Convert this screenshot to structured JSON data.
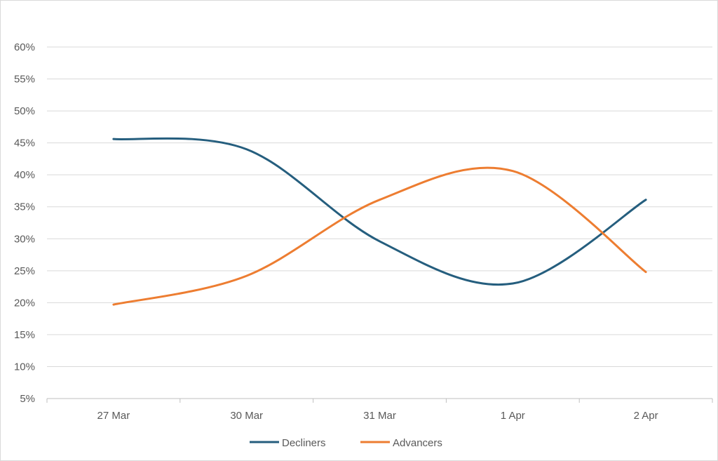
{
  "chart_data": {
    "type": "line",
    "title": "",
    "xlabel": "",
    "ylabel": "",
    "categories": [
      "27 Mar",
      "30 Mar",
      "31 Mar",
      "1 Apr",
      "2 Apr"
    ],
    "ylim": [
      5,
      60
    ],
    "yticks": [
      5,
      10,
      15,
      20,
      25,
      30,
      35,
      40,
      45,
      50,
      55,
      60
    ],
    "ytick_labels": [
      "5%",
      "10%",
      "15%",
      "20%",
      "25%",
      "30%",
      "35%",
      "40%",
      "45%",
      "50%",
      "55%",
      "60%"
    ],
    "grid": true,
    "smooth": true,
    "legend_position": "bottom",
    "series": [
      {
        "name": "Decliners",
        "color": "#255e7e",
        "values": [
          45.6,
          44.0,
          29.6,
          23.0,
          36.1
        ]
      },
      {
        "name": "Advancers",
        "color": "#ed7d31",
        "values": [
          19.7,
          24.2,
          36.1,
          40.6,
          24.8
        ]
      }
    ]
  }
}
